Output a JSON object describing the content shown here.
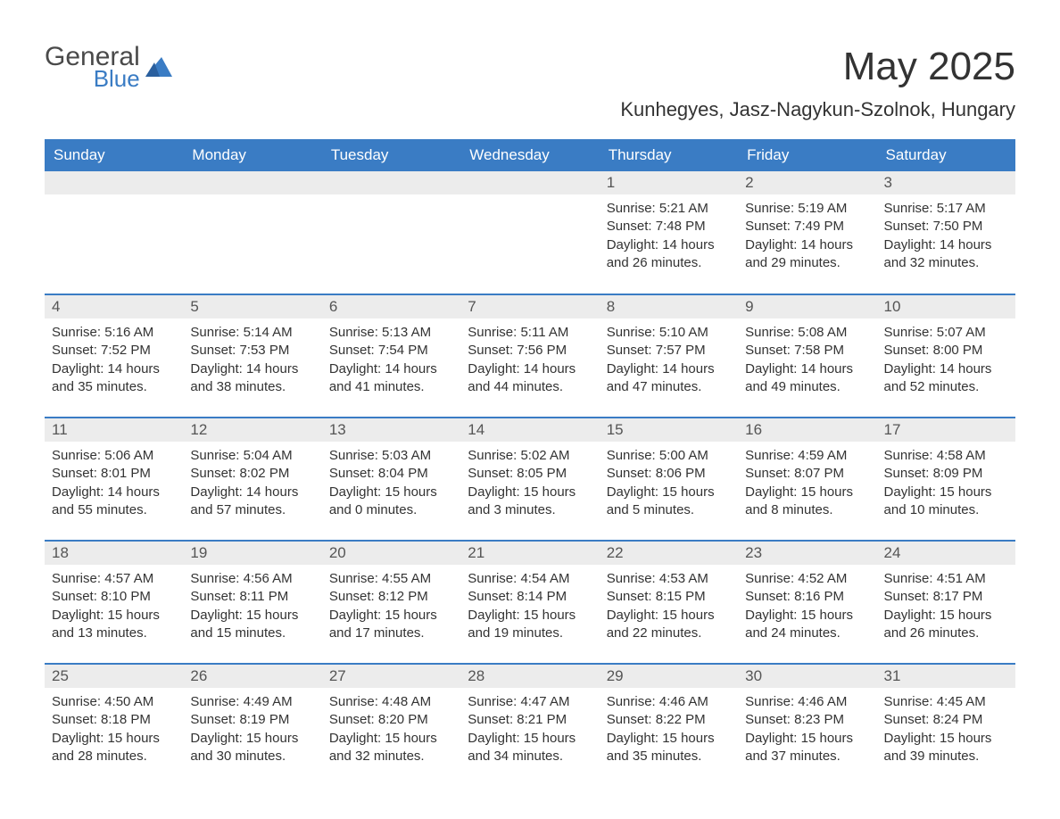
{
  "logo": {
    "word1": "General",
    "word2": "Blue"
  },
  "title": "May 2025",
  "location": "Kunhegyes, Jasz-Nagykun-Szolnok, Hungary",
  "colors": {
    "header_bg": "#3a7cc4",
    "header_fg": "#ffffff",
    "daynum_bg": "#ececec",
    "body_bg": "#ffffff",
    "text": "#333333",
    "row_border": "#3a7cc4"
  },
  "fonts": {
    "title_size_pt": 33,
    "location_size_pt": 17,
    "header_size_pt": 13,
    "body_size_pt": 11
  },
  "day_headers": [
    "Sunday",
    "Monday",
    "Tuesday",
    "Wednesday",
    "Thursday",
    "Friday",
    "Saturday"
  ],
  "weeks": [
    [
      null,
      null,
      null,
      null,
      {
        "n": "1",
        "sunrise": "5:21 AM",
        "sunset": "7:48 PM",
        "daylight": "14 hours and 26 minutes."
      },
      {
        "n": "2",
        "sunrise": "5:19 AM",
        "sunset": "7:49 PM",
        "daylight": "14 hours and 29 minutes."
      },
      {
        "n": "3",
        "sunrise": "5:17 AM",
        "sunset": "7:50 PM",
        "daylight": "14 hours and 32 minutes."
      }
    ],
    [
      {
        "n": "4",
        "sunrise": "5:16 AM",
        "sunset": "7:52 PM",
        "daylight": "14 hours and 35 minutes."
      },
      {
        "n": "5",
        "sunrise": "5:14 AM",
        "sunset": "7:53 PM",
        "daylight": "14 hours and 38 minutes."
      },
      {
        "n": "6",
        "sunrise": "5:13 AM",
        "sunset": "7:54 PM",
        "daylight": "14 hours and 41 minutes."
      },
      {
        "n": "7",
        "sunrise": "5:11 AM",
        "sunset": "7:56 PM",
        "daylight": "14 hours and 44 minutes."
      },
      {
        "n": "8",
        "sunrise": "5:10 AM",
        "sunset": "7:57 PM",
        "daylight": "14 hours and 47 minutes."
      },
      {
        "n": "9",
        "sunrise": "5:08 AM",
        "sunset": "7:58 PM",
        "daylight": "14 hours and 49 minutes."
      },
      {
        "n": "10",
        "sunrise": "5:07 AM",
        "sunset": "8:00 PM",
        "daylight": "14 hours and 52 minutes."
      }
    ],
    [
      {
        "n": "11",
        "sunrise": "5:06 AM",
        "sunset": "8:01 PM",
        "daylight": "14 hours and 55 minutes."
      },
      {
        "n": "12",
        "sunrise": "5:04 AM",
        "sunset": "8:02 PM",
        "daylight": "14 hours and 57 minutes."
      },
      {
        "n": "13",
        "sunrise": "5:03 AM",
        "sunset": "8:04 PM",
        "daylight": "15 hours and 0 minutes."
      },
      {
        "n": "14",
        "sunrise": "5:02 AM",
        "sunset": "8:05 PM",
        "daylight": "15 hours and 3 minutes."
      },
      {
        "n": "15",
        "sunrise": "5:00 AM",
        "sunset": "8:06 PM",
        "daylight": "15 hours and 5 minutes."
      },
      {
        "n": "16",
        "sunrise": "4:59 AM",
        "sunset": "8:07 PM",
        "daylight": "15 hours and 8 minutes."
      },
      {
        "n": "17",
        "sunrise": "4:58 AM",
        "sunset": "8:09 PM",
        "daylight": "15 hours and 10 minutes."
      }
    ],
    [
      {
        "n": "18",
        "sunrise": "4:57 AM",
        "sunset": "8:10 PM",
        "daylight": "15 hours and 13 minutes."
      },
      {
        "n": "19",
        "sunrise": "4:56 AM",
        "sunset": "8:11 PM",
        "daylight": "15 hours and 15 minutes."
      },
      {
        "n": "20",
        "sunrise": "4:55 AM",
        "sunset": "8:12 PM",
        "daylight": "15 hours and 17 minutes."
      },
      {
        "n": "21",
        "sunrise": "4:54 AM",
        "sunset": "8:14 PM",
        "daylight": "15 hours and 19 minutes."
      },
      {
        "n": "22",
        "sunrise": "4:53 AM",
        "sunset": "8:15 PM",
        "daylight": "15 hours and 22 minutes."
      },
      {
        "n": "23",
        "sunrise": "4:52 AM",
        "sunset": "8:16 PM",
        "daylight": "15 hours and 24 minutes."
      },
      {
        "n": "24",
        "sunrise": "4:51 AM",
        "sunset": "8:17 PM",
        "daylight": "15 hours and 26 minutes."
      }
    ],
    [
      {
        "n": "25",
        "sunrise": "4:50 AM",
        "sunset": "8:18 PM",
        "daylight": "15 hours and 28 minutes."
      },
      {
        "n": "26",
        "sunrise": "4:49 AM",
        "sunset": "8:19 PM",
        "daylight": "15 hours and 30 minutes."
      },
      {
        "n": "27",
        "sunrise": "4:48 AM",
        "sunset": "8:20 PM",
        "daylight": "15 hours and 32 minutes."
      },
      {
        "n": "28",
        "sunrise": "4:47 AM",
        "sunset": "8:21 PM",
        "daylight": "15 hours and 34 minutes."
      },
      {
        "n": "29",
        "sunrise": "4:46 AM",
        "sunset": "8:22 PM",
        "daylight": "15 hours and 35 minutes."
      },
      {
        "n": "30",
        "sunrise": "4:46 AM",
        "sunset": "8:23 PM",
        "daylight": "15 hours and 37 minutes."
      },
      {
        "n": "31",
        "sunrise": "4:45 AM",
        "sunset": "8:24 PM",
        "daylight": "15 hours and 39 minutes."
      }
    ]
  ],
  "labels": {
    "sunrise": "Sunrise: ",
    "sunset": "Sunset: ",
    "daylight": "Daylight: "
  }
}
